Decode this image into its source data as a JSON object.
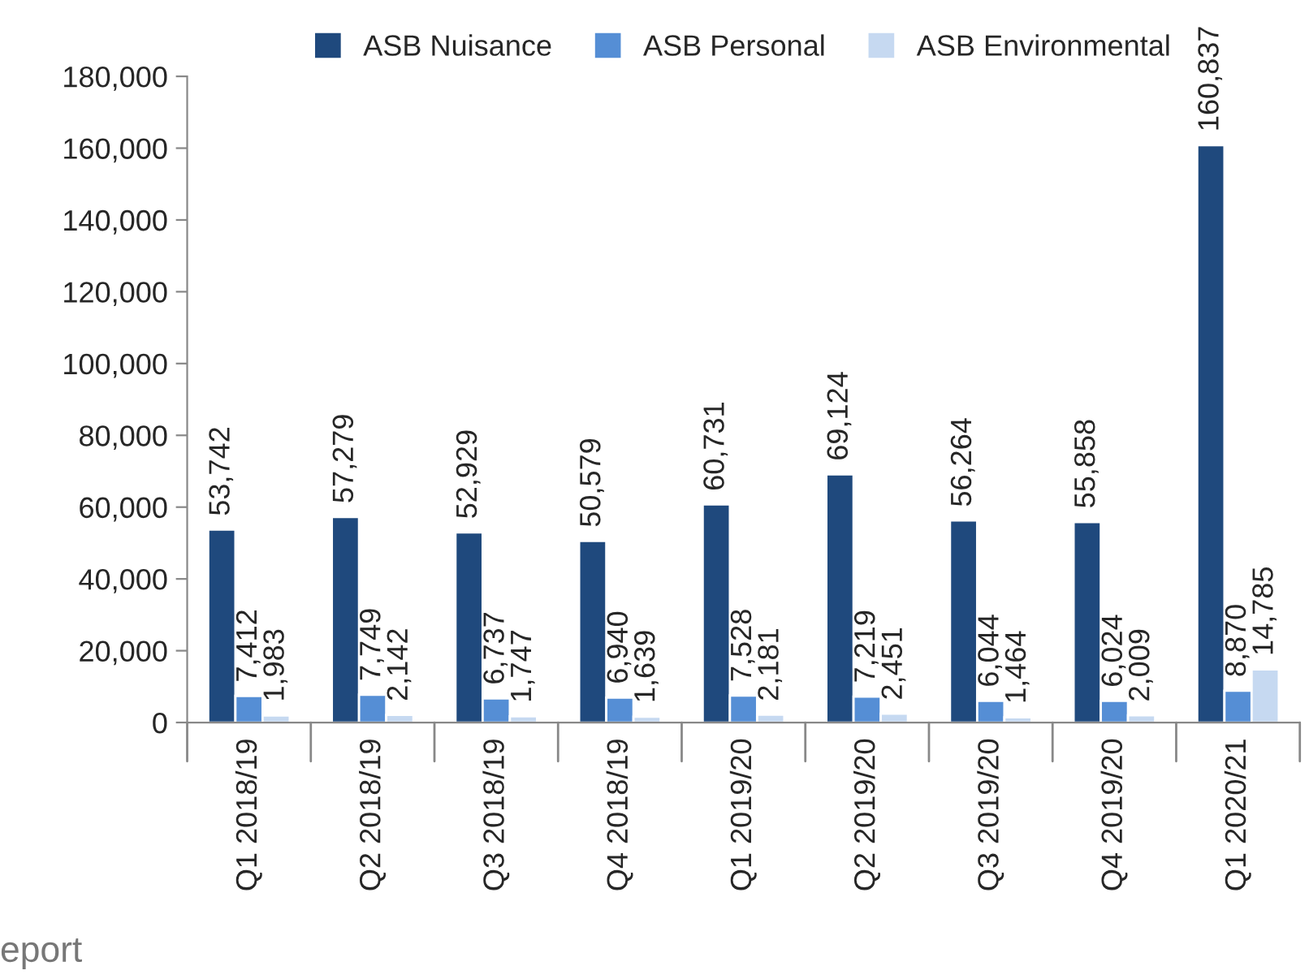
{
  "chart_data": {
    "type": "bar",
    "categories": [
      "Q1 2018/19",
      "Q2 2018/19",
      "Q3 2018/19",
      "Q4 2018/19",
      "Q1 2019/20",
      "Q2 2019/20",
      "Q3 2019/20",
      "Q4 2019/20",
      "Q1 2020/21"
    ],
    "series": [
      {
        "name": "ASB Nuisance",
        "color": "#1f497d",
        "values": [
          53742,
          57279,
          52929,
          50579,
          60731,
          69124,
          56264,
          55858,
          160837
        ],
        "value_labels": [
          "53,742",
          "57,279",
          "52,929",
          "50,579",
          "60,731",
          "69,124",
          "56,264",
          "55,858",
          "160,837"
        ]
      },
      {
        "name": "ASB Personal",
        "color": "#558ed5",
        "values": [
          7412,
          7749,
          6737,
          6940,
          7528,
          7219,
          6044,
          6024,
          8870
        ],
        "value_labels": [
          "7,412",
          "7,749",
          "6,737",
          "6,940",
          "7,528",
          "7,219",
          "6,044",
          "6,024",
          "8,870"
        ]
      },
      {
        "name": "ASB Environmental",
        "color": "#c6d9f1",
        "values": [
          1983,
          2142,
          1747,
          1639,
          2181,
          2451,
          1464,
          2009,
          14785
        ],
        "value_labels": [
          "1,983",
          "2,142",
          "1,747",
          "1,639",
          "2,181",
          "2,451",
          "1,464",
          "2,009",
          "14,785"
        ]
      }
    ],
    "ylim": [
      0,
      180000
    ],
    "yticks": [
      {
        "value": 0,
        "label": "0"
      },
      {
        "value": 20000,
        "label": "20,000"
      },
      {
        "value": 40000,
        "label": "40,000"
      },
      {
        "value": 60000,
        "label": "60,000"
      },
      {
        "value": 80000,
        "label": "80,000"
      },
      {
        "value": 100000,
        "label": "100,000"
      },
      {
        "value": 120000,
        "label": "120,000"
      },
      {
        "value": 140000,
        "label": "140,000"
      },
      {
        "value": 160000,
        "label": "160,000"
      },
      {
        "value": 180000,
        "label": "180,000"
      }
    ],
    "grid": false,
    "legend": "top",
    "annotations": [
      "eport"
    ]
  }
}
